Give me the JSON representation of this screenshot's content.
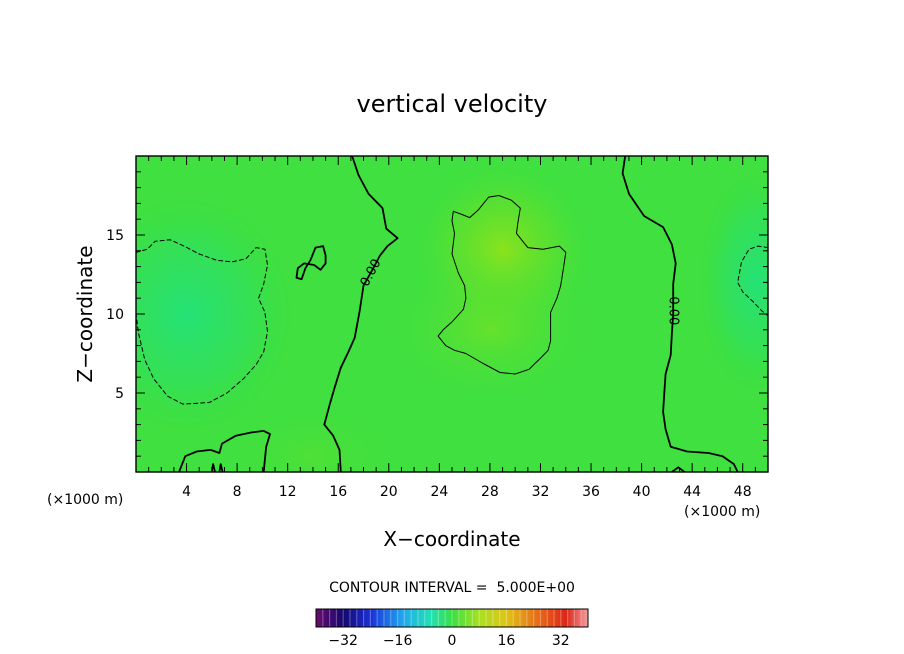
{
  "chart_data": {
    "type": "heatmap",
    "title": "vertical velocity",
    "xlabel": "X−coordinate",
    "ylabel": "Z−coordinate",
    "x_unit_label": "(×1000 m)",
    "y_unit_label": "(×1000 m)",
    "xlim": [
      0,
      50
    ],
    "ylim": [
      0,
      20
    ],
    "x_ticks": [
      4,
      8,
      12,
      16,
      20,
      24,
      28,
      32,
      36,
      40,
      44,
      48
    ],
    "y_ticks": [
      5,
      10,
      15
    ],
    "x_tick_labels": [
      "4",
      "8",
      "12",
      "16",
      "20",
      "24",
      "28",
      "32",
      "36",
      "40",
      "44",
      "48"
    ],
    "y_tick_labels": [
      "5",
      "10",
      "15"
    ],
    "contour_interval_label": "CONTOUR INTERVAL =  5.000E+00",
    "contour_interval": 5.0,
    "colorbar": {
      "range": [
        -40,
        40
      ],
      "ticks": [
        -32,
        -16,
        0,
        16,
        32
      ],
      "tick_labels": [
        "−32",
        "−16",
        "0",
        "16",
        "32"
      ],
      "colormap": "rainbow"
    },
    "grid": false,
    "contour_labels": [
      {
        "text": "0.00",
        "x": 18.6,
        "y": 12.6,
        "angle": -62
      },
      {
        "text": "0.00",
        "x": 42.5,
        "y": 10.2,
        "angle": 90
      }
    ],
    "contours": [
      {
        "level": 0,
        "style": "solid",
        "points": [
          [
            17.1,
            20
          ],
          [
            17.6,
            18.8
          ],
          [
            18.4,
            17.6
          ],
          [
            19.5,
            16.7
          ],
          [
            19.8,
            15.4
          ],
          [
            20.7,
            14.8
          ],
          [
            19.9,
            14.3
          ],
          [
            19.3,
            13.7
          ],
          [
            18.7,
            12.8
          ],
          [
            18.0,
            11.8
          ],
          [
            17.7,
            10.2
          ],
          [
            17.3,
            8.5
          ],
          [
            16.8,
            7.6
          ],
          [
            16.2,
            6.6
          ],
          [
            15.7,
            5.3
          ],
          [
            15.3,
            4.2
          ],
          [
            14.9,
            3.0
          ],
          [
            15.6,
            2.3
          ],
          [
            16.1,
            1.4
          ],
          [
            16.2,
            0.0
          ]
        ]
      },
      {
        "level": 0,
        "style": "solid",
        "points": [
          [
            38.7,
            20
          ],
          [
            38.5,
            18.9
          ],
          [
            39.0,
            17.6
          ],
          [
            40.2,
            16.2
          ],
          [
            41.7,
            15.5
          ],
          [
            42.4,
            14.4
          ],
          [
            42.7,
            13.2
          ],
          [
            42.5,
            11.9
          ],
          [
            42.5,
            10.0
          ],
          [
            42.4,
            8.8
          ],
          [
            42.3,
            7.4
          ],
          [
            41.9,
            6.2
          ],
          [
            41.8,
            5.1
          ],
          [
            41.7,
            3.8
          ],
          [
            41.9,
            2.7
          ],
          [
            42.3,
            1.6
          ],
          [
            43.6,
            1.3
          ],
          [
            45.3,
            1.2
          ],
          [
            46.4,
            1.0
          ],
          [
            47.3,
            0.5
          ],
          [
            47.6,
            0.0
          ]
        ]
      },
      {
        "level": 5,
        "style": "solid",
        "points": [
          [
            25.1,
            16.5
          ],
          [
            25.8,
            16.3
          ],
          [
            26.4,
            16.1
          ],
          [
            27.1,
            16.6
          ],
          [
            27.9,
            17.4
          ],
          [
            28.7,
            17.5
          ],
          [
            29.7,
            17.2
          ],
          [
            30.4,
            16.7
          ],
          [
            30.2,
            15.7
          ],
          [
            30.1,
            15.1
          ],
          [
            31.0,
            14.2
          ],
          [
            32.2,
            14.1
          ],
          [
            33.5,
            14.3
          ],
          [
            34.0,
            13.9
          ],
          [
            33.8,
            12.8
          ],
          [
            33.6,
            11.8
          ],
          [
            33.3,
            11.0
          ],
          [
            32.8,
            10.1
          ],
          [
            32.8,
            9.4
          ],
          [
            32.8,
            8.3
          ],
          [
            32.6,
            7.7
          ],
          [
            32.0,
            7.2
          ],
          [
            31.6,
            6.9
          ],
          [
            31.1,
            6.5
          ],
          [
            30.0,
            6.2
          ],
          [
            28.8,
            6.3
          ],
          [
            27.4,
            6.9
          ],
          [
            26.1,
            7.5
          ],
          [
            25.2,
            7.7
          ],
          [
            24.5,
            8.0
          ],
          [
            23.9,
            8.6
          ],
          [
            24.3,
            9.0
          ],
          [
            25.0,
            9.5
          ],
          [
            25.9,
            10.3
          ],
          [
            26.1,
            11.0
          ],
          [
            26.0,
            11.8
          ],
          [
            25.5,
            12.6
          ],
          [
            25.0,
            13.8
          ],
          [
            25.2,
            15.1
          ],
          [
            25.0,
            15.9
          ],
          [
            25.1,
            16.5
          ]
        ]
      },
      {
        "level": 0,
        "style": "solid",
        "points": [
          [
            14.8,
            14.3
          ],
          [
            14.2,
            14.2
          ],
          [
            13.8,
            13.4
          ],
          [
            13.4,
            12.9
          ],
          [
            13.1,
            12.2
          ],
          [
            12.7,
            12.3
          ],
          [
            12.8,
            12.9
          ],
          [
            13.3,
            13.2
          ],
          [
            14.1,
            13.1
          ],
          [
            14.6,
            12.8
          ],
          [
            15.0,
            13.2
          ],
          [
            15.0,
            13.7
          ],
          [
            14.8,
            14.3
          ]
        ]
      },
      {
        "level": -5,
        "style": "dashed",
        "points": [
          [
            0.0,
            13.9
          ],
          [
            0.9,
            14.1
          ],
          [
            1.5,
            14.6
          ],
          [
            2.7,
            14.7
          ],
          [
            3.8,
            14.3
          ],
          [
            5.0,
            13.8
          ],
          [
            6.4,
            13.4
          ],
          [
            7.6,
            13.3
          ],
          [
            8.7,
            13.5
          ],
          [
            9.5,
            14.2
          ],
          [
            10.2,
            14.1
          ],
          [
            10.4,
            13.1
          ],
          [
            10.1,
            11.9
          ],
          [
            9.7,
            11.0
          ],
          [
            10.2,
            10.1
          ],
          [
            10.4,
            8.9
          ],
          [
            10.1,
            7.6
          ],
          [
            9.5,
            6.8
          ],
          [
            8.5,
            5.9
          ],
          [
            7.2,
            5.0
          ],
          [
            5.8,
            4.4
          ],
          [
            3.7,
            4.3
          ],
          [
            2.5,
            4.8
          ],
          [
            1.4,
            5.9
          ],
          [
            0.7,
            7.1
          ],
          [
            0.2,
            8.8
          ],
          [
            0.0,
            10.0
          ]
        ]
      },
      {
        "level": -5,
        "style": "dashed",
        "points": [
          [
            50.0,
            14.2
          ],
          [
            49.2,
            14.3
          ],
          [
            48.5,
            14.1
          ],
          [
            47.9,
            13.3
          ],
          [
            47.6,
            12.0
          ],
          [
            48.0,
            11.4
          ],
          [
            48.8,
            10.8
          ],
          [
            49.5,
            10.2
          ],
          [
            50.0,
            9.9
          ]
        ]
      },
      {
        "level": 0,
        "style": "solid",
        "points": [
          [
            3.4,
            0.0
          ],
          [
            3.9,
            1.0
          ],
          [
            4.8,
            1.3
          ],
          [
            5.9,
            1.4
          ],
          [
            6.6,
            1.2
          ],
          [
            6.8,
            1.8
          ],
          [
            7.9,
            2.3
          ],
          [
            9.1,
            2.5
          ],
          [
            10.1,
            2.6
          ],
          [
            10.6,
            2.4
          ],
          [
            10.3,
            1.6
          ],
          [
            10.2,
            0.8
          ],
          [
            10.1,
            0.0
          ]
        ]
      },
      {
        "level": 0,
        "style": "solid",
        "points": [
          [
            6.0,
            0.0
          ],
          [
            6.1,
            0.5
          ],
          [
            6.25,
            0.0
          ]
        ]
      },
      {
        "level": 0,
        "style": "solid",
        "points": [
          [
            6.6,
            0.0
          ],
          [
            6.7,
            0.5
          ],
          [
            6.85,
            0.0
          ]
        ]
      },
      {
        "level": 0,
        "style": "solid",
        "points": [
          [
            42.4,
            0.0
          ],
          [
            42.9,
            0.3
          ],
          [
            43.4,
            0.0
          ]
        ]
      }
    ],
    "field_centers": [
      {
        "x": 29,
        "y": 14,
        "value": 9
      },
      {
        "x": 28,
        "y": 9,
        "value": 6
      },
      {
        "x": 4,
        "y": 10,
        "value": -8
      },
      {
        "x": 49,
        "y": 12,
        "value": -6
      },
      {
        "x": 14,
        "y": 1,
        "value": 2
      }
    ]
  }
}
